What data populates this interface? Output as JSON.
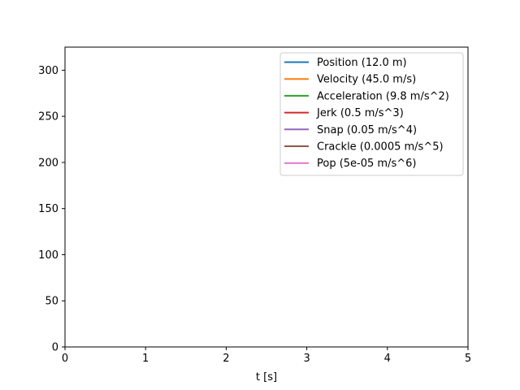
{
  "chart_data": {
    "type": "line",
    "title": "",
    "xlabel": "t [s]",
    "ylabel": "",
    "xlim": [
      0,
      5
    ],
    "ylim": [
      0,
      325
    ],
    "xticks": [
      0,
      1,
      2,
      3,
      4,
      5
    ],
    "yticks": [
      0,
      50,
      100,
      150,
      200,
      250,
      300
    ],
    "grid": false,
    "legend_position": "top-right",
    "series": [
      {
        "name": "Position (12.0 m)",
        "color": "#1f77b4",
        "x": [],
        "y": []
      },
      {
        "name": "Velocity (45.0 m/s)",
        "color": "#ff7f0e",
        "x": [],
        "y": []
      },
      {
        "name": "Acceleration (9.8 m/s^2)",
        "color": "#2ca02c",
        "x": [],
        "y": []
      },
      {
        "name": "Jerk (0.5 m/s^3)",
        "color": "#d62728",
        "x": [],
        "y": []
      },
      {
        "name": "Snap (0.05 m/s^4)",
        "color": "#9467bd",
        "x": [],
        "y": []
      },
      {
        "name": "Crackle (0.0005 m/s^5)",
        "color": "#8c564b",
        "x": [],
        "y": []
      },
      {
        "name": "Pop (5e-05 m/s^6)",
        "color": "#e377c2",
        "x": [],
        "y": []
      }
    ]
  }
}
